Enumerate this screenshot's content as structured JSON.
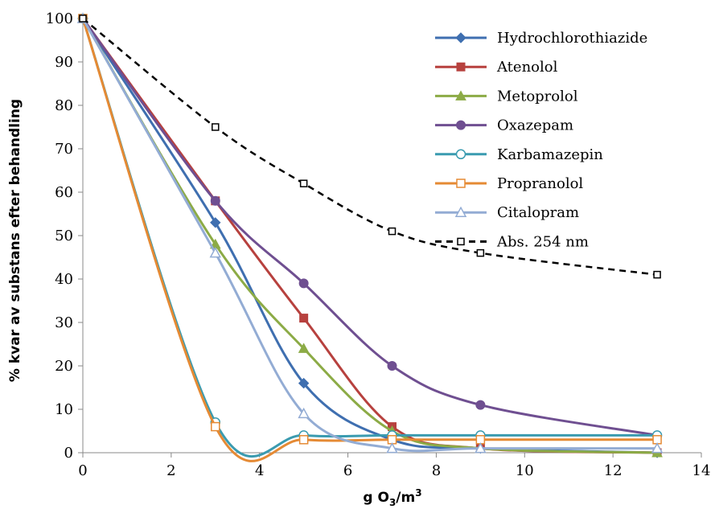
{
  "chart_data": {
    "type": "line",
    "title": "",
    "xlabel": "g O3/m3",
    "xlabel_parts": {
      "base": "g O",
      "sub": "3",
      "mid": "/m",
      "sup": "3"
    },
    "ylabel": "% kvar av substans efter behandling",
    "xlim": [
      0,
      14
    ],
    "ylim": [
      0,
      100
    ],
    "xticks": [
      0,
      2,
      4,
      6,
      8,
      10,
      12,
      14
    ],
    "yticks": [
      0,
      10,
      20,
      30,
      40,
      50,
      60,
      70,
      80,
      90,
      100
    ],
    "x": [
      0,
      3,
      5,
      7,
      9,
      13
    ],
    "grid": false,
    "legend_position": "top-right",
    "series": [
      {
        "name": "Hydrochlorothiazide",
        "values": [
          100,
          53,
          16,
          3,
          1,
          0
        ],
        "color": "#3f6fb0",
        "marker": "diamond",
        "fill": true,
        "dash": false
      },
      {
        "name": "Atenolol",
        "values": [
          100,
          58,
          31,
          6,
          1,
          0
        ],
        "color": "#b7413e",
        "marker": "square",
        "fill": true,
        "dash": false
      },
      {
        "name": "Metoprolol",
        "values": [
          100,
          48,
          24,
          5,
          1,
          0
        ],
        "color": "#8cab46",
        "marker": "triangle",
        "fill": true,
        "dash": false
      },
      {
        "name": "Oxazepam",
        "values": [
          100,
          58,
          39,
          20,
          11,
          4
        ],
        "color": "#6f4f91",
        "marker": "circle",
        "fill": true,
        "dash": false
      },
      {
        "name": "Karbamazepin",
        "values": [
          100,
          7,
          4,
          4,
          4,
          4
        ],
        "color": "#3a9bb0",
        "marker": "circle",
        "fill": false,
        "dash": false
      },
      {
        "name": "Propranolol",
        "values": [
          100,
          6,
          3,
          3,
          3,
          3
        ],
        "color": "#e58a34",
        "marker": "square",
        "fill": false,
        "dash": false
      },
      {
        "name": "Citalopram",
        "values": [
          100,
          46,
          9,
          1,
          1,
          1
        ],
        "color": "#93acd4",
        "marker": "triangle",
        "fill": false,
        "dash": false
      },
      {
        "name": "Abs. 254 nm",
        "values": [
          100,
          75,
          62,
          51,
          46,
          41
        ],
        "color": "#000000",
        "marker": "square",
        "fill": false,
        "dash": true
      }
    ]
  }
}
